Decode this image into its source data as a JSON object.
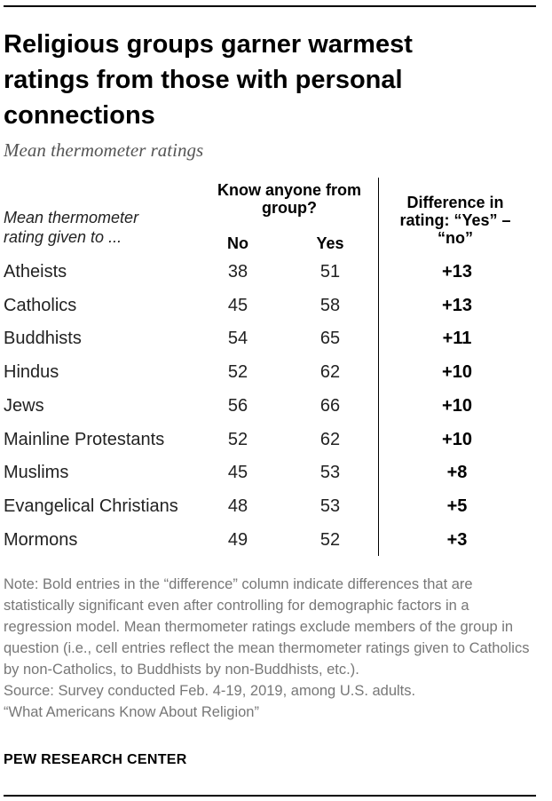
{
  "title": "Religious groups garner warmest ratings from those with personal connections",
  "subtitle": "Mean thermometer ratings",
  "table": {
    "row_label_header": "Mean thermometer rating given to ...",
    "know_header": "Know anyone from group?",
    "no_header": "No",
    "yes_header": "Yes",
    "diff_header": "Difference in rating: “Yes” – “no”"
  },
  "chart_data": {
    "type": "table",
    "title": "Religious groups garner warmest ratings from those with personal connections",
    "subtitle": "Mean thermometer ratings",
    "columns": [
      "Mean thermometer rating given to ...",
      "No",
      "Yes",
      "Difference in rating: “Yes” – “no”"
    ],
    "rows": [
      {
        "group": "Atheists",
        "no": "38",
        "yes": "51",
        "diff": "+13"
      },
      {
        "group": "Catholics",
        "no": "45",
        "yes": "58",
        "diff": "+13"
      },
      {
        "group": "Buddhists",
        "no": "54",
        "yes": "65",
        "diff": "+11"
      },
      {
        "group": "Hindus",
        "no": "52",
        "yes": "62",
        "diff": "+10"
      },
      {
        "group": "Jews",
        "no": "56",
        "yes": "66",
        "diff": "+10"
      },
      {
        "group": "Mainline Protestants",
        "no": "52",
        "yes": "62",
        "diff": "+10"
      },
      {
        "group": "Muslims",
        "no": "45",
        "yes": "53",
        "diff": "+8"
      },
      {
        "group": "Evangelical Christians",
        "no": "48",
        "yes": "53",
        "diff": "+5"
      },
      {
        "group": "Mormons",
        "no": "49",
        "yes": "52",
        "diff": "+3"
      }
    ]
  },
  "notes": [
    "Note: Bold entries in the “difference” column indicate differences that are statistically significant even after controlling for demographic factors in a regression model. Mean thermometer ratings exclude members of the group in question (i.e., cell entries reflect the mean thermometer ratings given to Catholics by non-Catholics, to Buddhists by non-Buddhists, etc.).",
    "Source: Survey conducted Feb. 4-19, 2019, among U.S. adults.",
    "“What Americans Know About Religion”"
  ],
  "brand": "PEW RESEARCH CENTER"
}
